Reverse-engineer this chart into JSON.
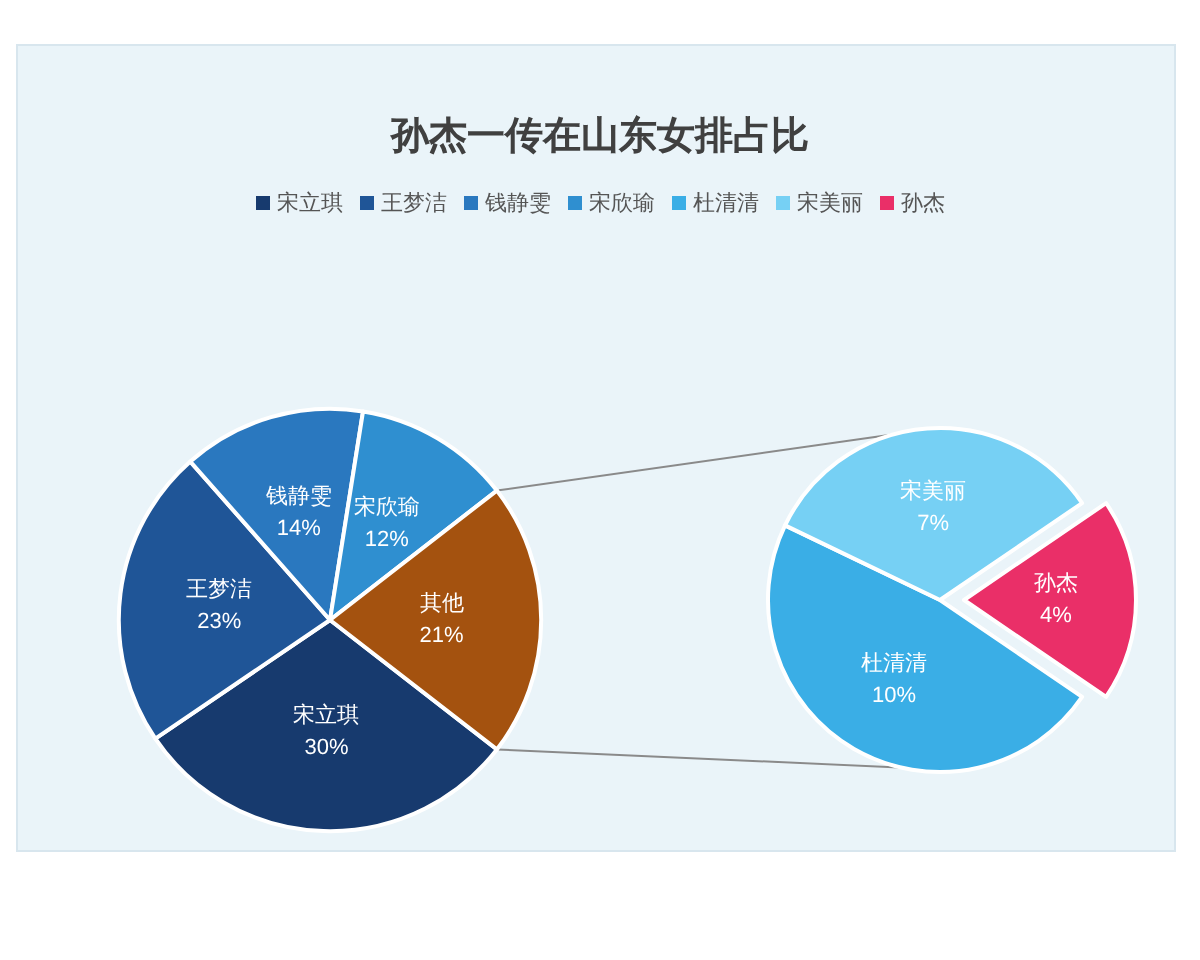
{
  "chart_data": [
    {
      "type": "pie",
      "title": "孙杰一传在山东女排占比",
      "legend": "top",
      "categories": [
        "宋立琪",
        "王梦洁",
        "钱静雯",
        "宋欣瑜",
        "其他"
      ],
      "values": [
        30,
        23,
        14,
        12,
        21
      ],
      "value_labels": [
        "30%",
        "23%",
        "14%",
        "12%",
        "21%"
      ],
      "colors": [
        "#173a6e",
        "#1f5597",
        "#2a78bf",
        "#2f8fd0",
        "#a4520f"
      ]
    },
    {
      "type": "pie",
      "legend": "top",
      "categories": [
        "杜清清",
        "宋美丽",
        "孙杰"
      ],
      "values": [
        10,
        7,
        4
      ],
      "value_labels": [
        "10%",
        "7%",
        "4%"
      ],
      "colors": [
        "#3aaee6",
        "#76d0f4",
        "#ea2f68"
      ]
    }
  ]
}
